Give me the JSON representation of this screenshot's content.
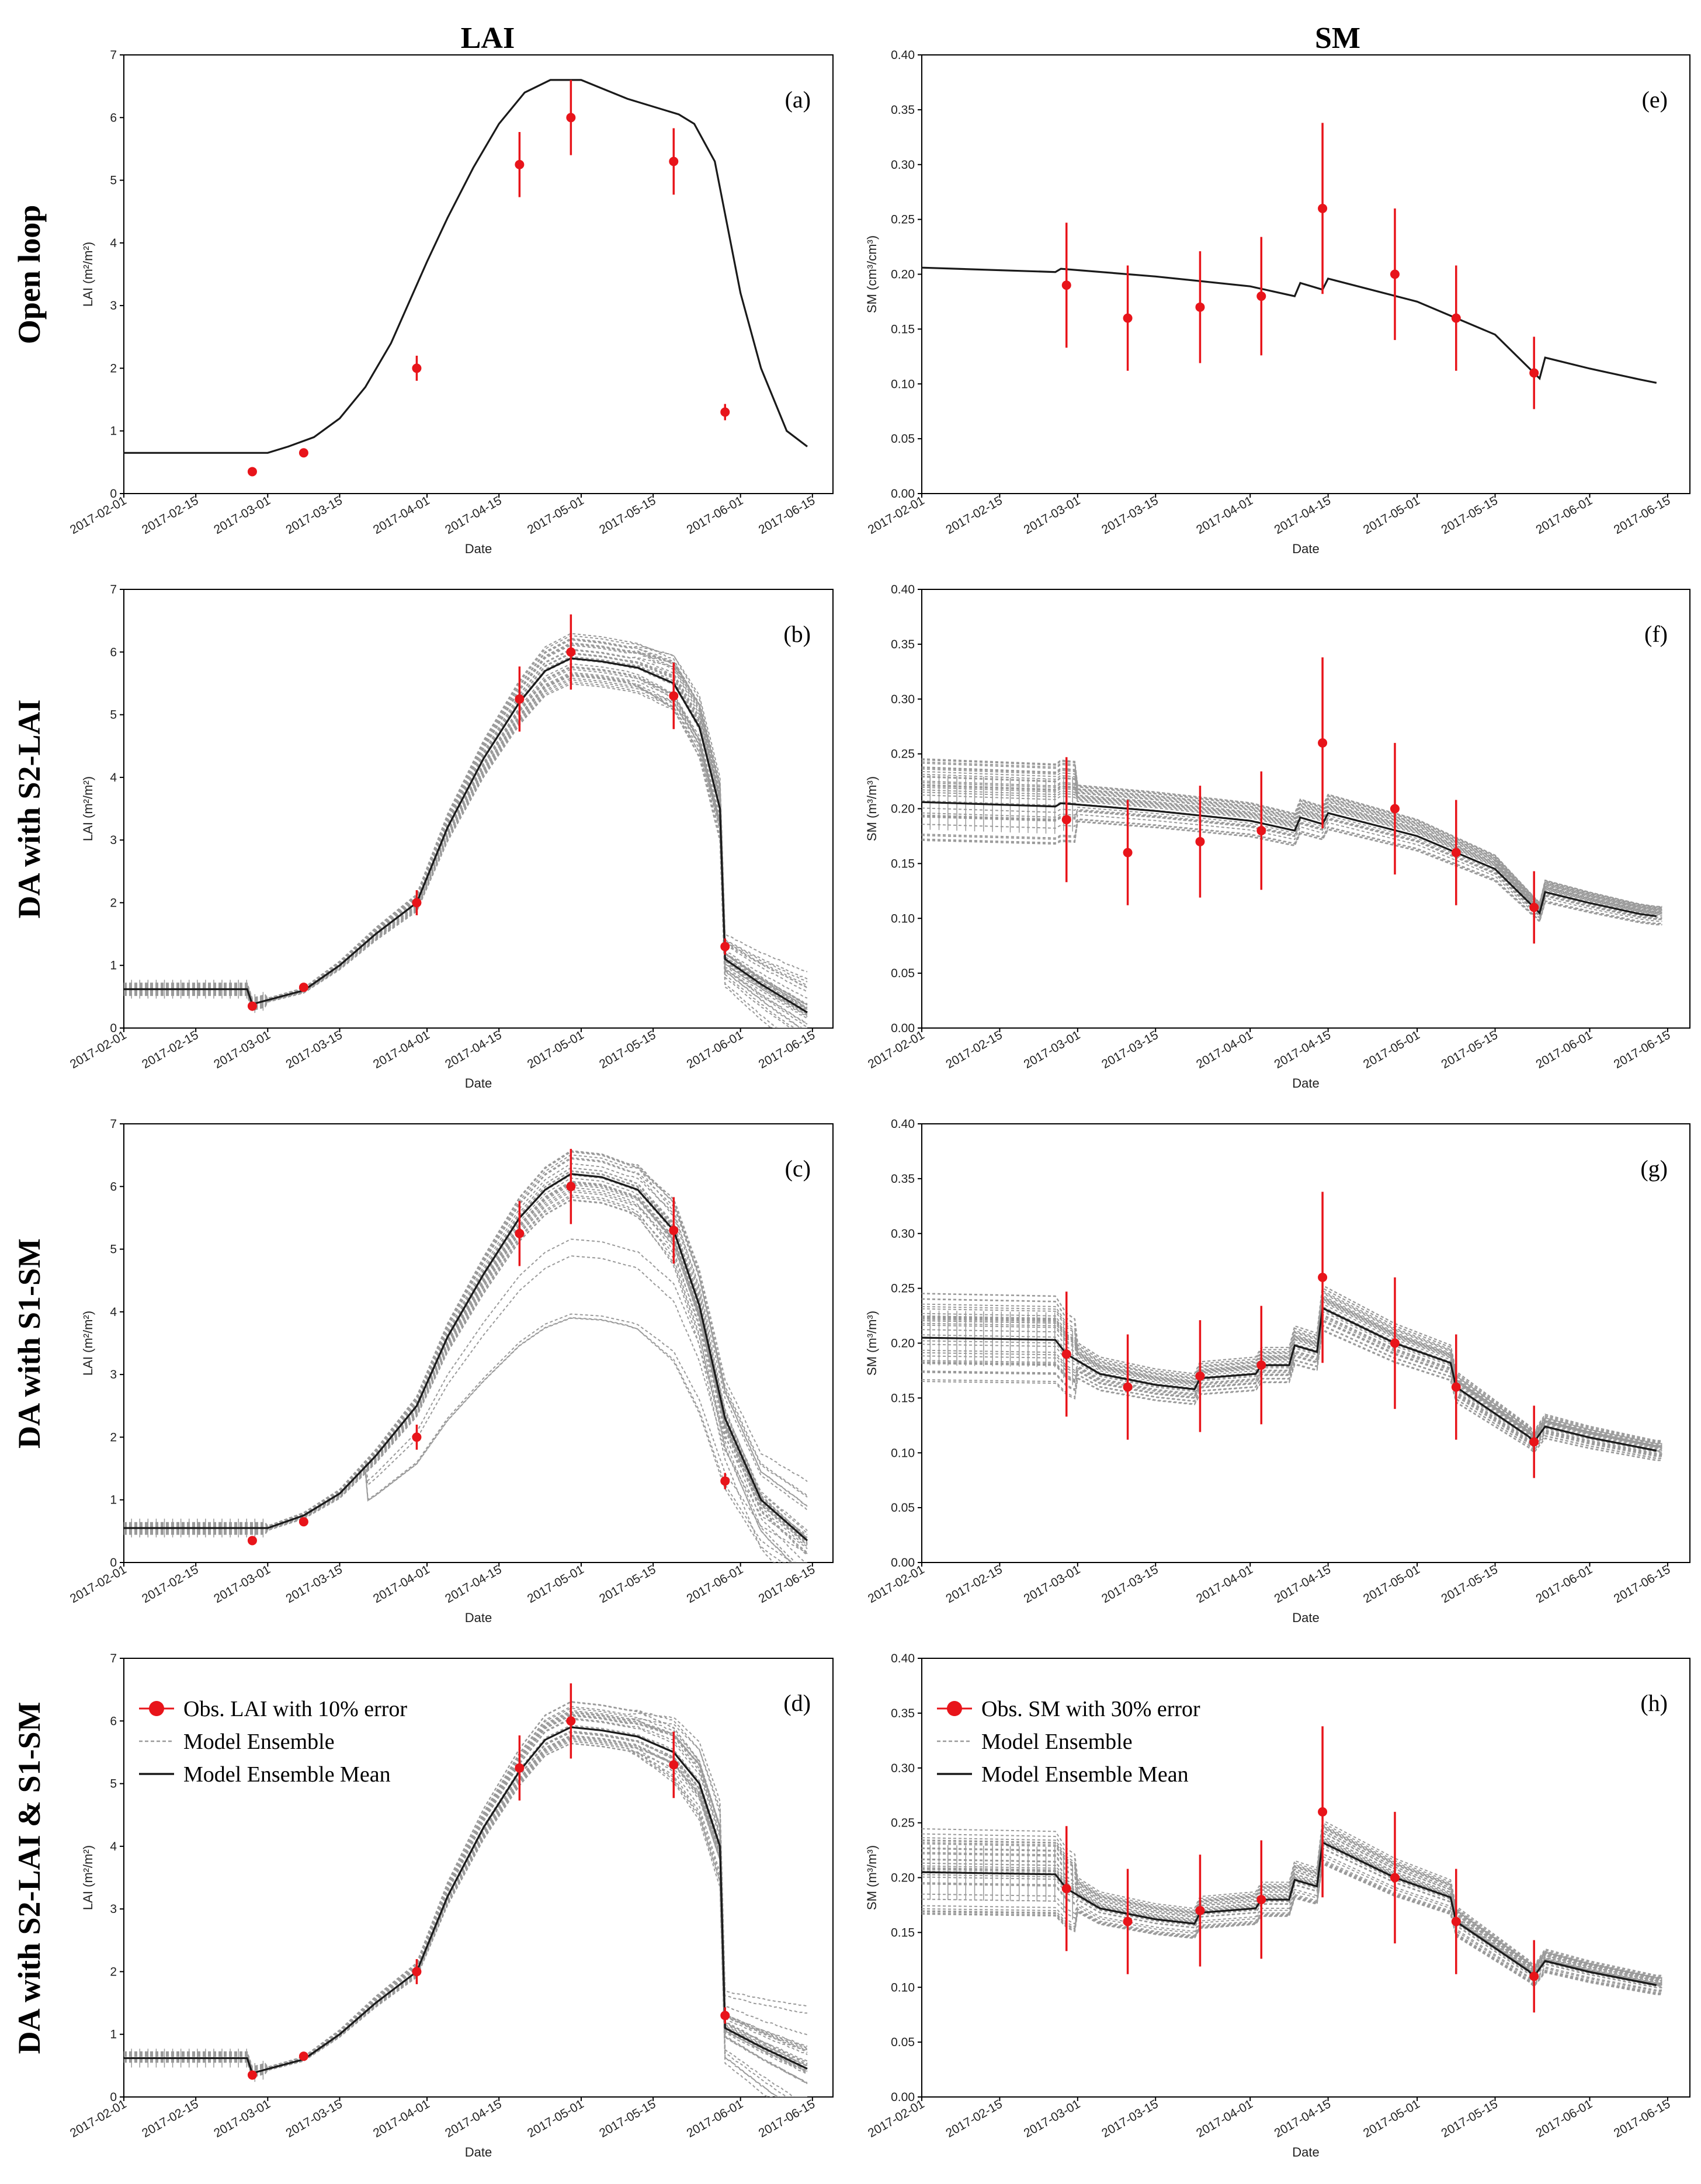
{
  "figure": {
    "column_titles": [
      "LAI",
      "SM"
    ],
    "row_titles": [
      "Open loop",
      "DA with S2-LAI",
      "DA with S1-SM",
      "DA with S2-LAI & S1-SM"
    ]
  },
  "colors": {
    "observation": "#e8141a",
    "ensemble": "#9a9a9a",
    "mean": "#1a1a1a",
    "axis": "#000000"
  },
  "chart_data": [
    {
      "id": "a",
      "letter": "(a)",
      "type": "line",
      "variable": "LAI",
      "row": 0,
      "title": "",
      "xlabel": "Date",
      "ylabel": "LAI (m²/m²)",
      "ylim": [
        0,
        7
      ],
      "yticks": [
        "0",
        "1",
        "2",
        "3",
        "4",
        "5",
        "6",
        "7"
      ],
      "xticks": [
        "2017-02-01",
        "2017-02-15",
        "2017-03-01",
        "2017-03-15",
        "2017-04-01",
        "2017-04-15",
        "2017-05-01",
        "2017-05-15",
        "2017-06-01",
        "2017-06-15"
      ],
      "ensemble": false,
      "legend": null,
      "observations": [
        {
          "date": "2017-02-26",
          "value": 0.35,
          "error": 0.04
        },
        {
          "date": "2017-03-08",
          "value": 0.65,
          "error": 0.07
        },
        {
          "date": "2017-03-30",
          "value": 2.0,
          "error": 0.2
        },
        {
          "date": "2017-04-19",
          "value": 5.25,
          "error": 0.52
        },
        {
          "date": "2017-04-29",
          "value": 6.0,
          "error": 0.6
        },
        {
          "date": "2017-05-19",
          "value": 5.3,
          "error": 0.53
        },
        {
          "date": "2017-05-29",
          "value": 1.3,
          "error": 0.13
        }
      ],
      "mean_series": {
        "name": "Open loop",
        "dates": [
          "2017-02-01",
          "2017-03-01",
          "2017-03-05",
          "2017-03-10",
          "2017-03-15",
          "2017-03-20",
          "2017-03-25",
          "2017-04-01",
          "2017-04-05",
          "2017-04-10",
          "2017-04-15",
          "2017-04-20",
          "2017-04-25",
          "2017-05-01",
          "2017-05-10",
          "2017-05-20",
          "2017-05-23",
          "2017-05-27",
          "2017-06-01",
          "2017-06-05",
          "2017-06-10",
          "2017-06-14"
        ],
        "values": [
          0.65,
          0.65,
          0.75,
          0.9,
          1.2,
          1.7,
          2.4,
          3.7,
          4.4,
          5.2,
          5.9,
          6.4,
          6.6,
          6.6,
          6.3,
          6.05,
          5.9,
          5.3,
          3.2,
          2.0,
          1.0,
          0.75
        ]
      }
    },
    {
      "id": "b",
      "letter": "(b)",
      "type": "line",
      "variable": "LAI",
      "row": 1,
      "title": "",
      "xlabel": "Date",
      "ylabel": "LAI (m²/m²)",
      "ylim": [
        0,
        7
      ],
      "yticks": [
        "0",
        "1",
        "2",
        "3",
        "4",
        "5",
        "6",
        "7"
      ],
      "xticks": [
        "2017-02-01",
        "2017-02-15",
        "2017-03-01",
        "2017-03-15",
        "2017-04-01",
        "2017-04-15",
        "2017-05-01",
        "2017-05-15",
        "2017-06-01",
        "2017-06-15"
      ],
      "ensemble": true,
      "legend": null,
      "observations": [
        {
          "date": "2017-02-26",
          "value": 0.35,
          "error": 0.04
        },
        {
          "date": "2017-03-08",
          "value": 0.65,
          "error": 0.07
        },
        {
          "date": "2017-03-30",
          "value": 2.0,
          "error": 0.2
        },
        {
          "date": "2017-04-19",
          "value": 5.25,
          "error": 0.52
        },
        {
          "date": "2017-04-29",
          "value": 6.0,
          "error": 0.6
        },
        {
          "date": "2017-05-19",
          "value": 5.3,
          "error": 0.53
        },
        {
          "date": "2017-05-29",
          "value": 1.3,
          "error": 0.13
        }
      ],
      "mean_series": {
        "name": "Model Ensemble Mean",
        "dates": [
          "2017-02-01",
          "2017-02-25",
          "2017-02-26",
          "2017-03-08",
          "2017-03-15",
          "2017-03-22",
          "2017-03-30",
          "2017-04-05",
          "2017-04-12",
          "2017-04-19",
          "2017-04-24",
          "2017-04-29",
          "2017-05-05",
          "2017-05-12",
          "2017-05-19",
          "2017-05-24",
          "2017-05-28",
          "2017-05-29",
          "2017-06-05",
          "2017-06-14"
        ],
        "values": [
          0.62,
          0.62,
          0.38,
          0.6,
          1.0,
          1.5,
          2.0,
          3.2,
          4.3,
          5.2,
          5.7,
          5.9,
          5.85,
          5.75,
          5.5,
          4.8,
          3.5,
          1.1,
          0.7,
          0.25
        ]
      }
    },
    {
      "id": "c",
      "letter": "(c)",
      "type": "line",
      "variable": "LAI",
      "row": 2,
      "title": "",
      "xlabel": "Date",
      "ylabel": "LAI (m²/m²)",
      "ylim": [
        0,
        7
      ],
      "yticks": [
        "0",
        "1",
        "2",
        "3",
        "4",
        "5",
        "6",
        "7"
      ],
      "xticks": [
        "2017-02-01",
        "2017-02-15",
        "2017-03-01",
        "2017-03-15",
        "2017-04-01",
        "2017-04-15",
        "2017-05-01",
        "2017-05-15",
        "2017-06-01",
        "2017-06-15"
      ],
      "ensemble": true,
      "legend": null,
      "observations": [
        {
          "date": "2017-02-26",
          "value": 0.35,
          "error": 0.04
        },
        {
          "date": "2017-03-08",
          "value": 0.65,
          "error": 0.07
        },
        {
          "date": "2017-03-30",
          "value": 2.0,
          "error": 0.2
        },
        {
          "date": "2017-04-19",
          "value": 5.25,
          "error": 0.52
        },
        {
          "date": "2017-04-29",
          "value": 6.0,
          "error": 0.6
        },
        {
          "date": "2017-05-19",
          "value": 5.3,
          "error": 0.53
        },
        {
          "date": "2017-05-29",
          "value": 1.3,
          "error": 0.13
        }
      ],
      "mean_series": {
        "name": "Model Ensemble Mean",
        "dates": [
          "2017-02-01",
          "2017-03-01",
          "2017-03-08",
          "2017-03-15",
          "2017-03-22",
          "2017-03-30",
          "2017-04-05",
          "2017-04-12",
          "2017-04-19",
          "2017-04-24",
          "2017-04-29",
          "2017-05-05",
          "2017-05-12",
          "2017-05-19",
          "2017-05-24",
          "2017-05-29",
          "2017-06-05",
          "2017-06-14"
        ],
        "values": [
          0.55,
          0.55,
          0.75,
          1.1,
          1.7,
          2.5,
          3.6,
          4.6,
          5.5,
          5.95,
          6.2,
          6.15,
          5.95,
          5.3,
          4.1,
          2.3,
          1.0,
          0.35
        ]
      }
    },
    {
      "id": "d",
      "letter": "(d)",
      "type": "line",
      "variable": "LAI",
      "row": 3,
      "title": "",
      "xlabel": "Date",
      "ylabel": "LAI (m²/m²)",
      "ylim": [
        0,
        7
      ],
      "yticks": [
        "0",
        "1",
        "2",
        "3",
        "4",
        "5",
        "6",
        "7"
      ],
      "xticks": [
        "2017-02-01",
        "2017-02-15",
        "2017-03-01",
        "2017-03-15",
        "2017-04-01",
        "2017-04-15",
        "2017-05-01",
        "2017-05-15",
        "2017-06-01",
        "2017-06-15"
      ],
      "ensemble": true,
      "legend": {
        "placement": "top-left",
        "entries": [
          "Obs. LAI with 10% error",
          "Model Ensemble",
          "Model Ensemble Mean"
        ]
      },
      "observations": [
        {
          "date": "2017-02-26",
          "value": 0.35,
          "error": 0.04
        },
        {
          "date": "2017-03-08",
          "value": 0.65,
          "error": 0.07
        },
        {
          "date": "2017-03-30",
          "value": 2.0,
          "error": 0.2
        },
        {
          "date": "2017-04-19",
          "value": 5.25,
          "error": 0.52
        },
        {
          "date": "2017-04-29",
          "value": 6.0,
          "error": 0.6
        },
        {
          "date": "2017-05-19",
          "value": 5.3,
          "error": 0.53
        },
        {
          "date": "2017-05-29",
          "value": 1.3,
          "error": 0.13
        }
      ],
      "mean_series": {
        "name": "Model Ensemble Mean",
        "dates": [
          "2017-02-01",
          "2017-02-25",
          "2017-02-26",
          "2017-03-08",
          "2017-03-15",
          "2017-03-22",
          "2017-03-30",
          "2017-04-05",
          "2017-04-12",
          "2017-04-19",
          "2017-04-24",
          "2017-04-29",
          "2017-05-05",
          "2017-05-12",
          "2017-05-19",
          "2017-05-24",
          "2017-05-28",
          "2017-05-29",
          "2017-06-05",
          "2017-06-14"
        ],
        "values": [
          0.62,
          0.62,
          0.38,
          0.6,
          1.0,
          1.5,
          2.0,
          3.2,
          4.3,
          5.2,
          5.7,
          5.9,
          5.85,
          5.75,
          5.5,
          5.0,
          4.0,
          1.1,
          0.8,
          0.45
        ]
      }
    },
    {
      "id": "e",
      "letter": "(e)",
      "type": "line",
      "variable": "SM",
      "row": 0,
      "title": "",
      "xlabel": "Date",
      "ylabel": "SM (cm³/cm³)",
      "ylim": [
        0,
        0.4
      ],
      "yticks": [
        "0.00",
        "0.05",
        "0.10",
        "0.15",
        "0.20",
        "0.25",
        "0.30",
        "0.35",
        "0.40"
      ],
      "xticks": [
        "2017-02-01",
        "2017-02-15",
        "2017-03-01",
        "2017-03-15",
        "2017-04-01",
        "2017-04-15",
        "2017-05-01",
        "2017-05-15",
        "2017-06-01",
        "2017-06-15"
      ],
      "ensemble": false,
      "legend": null,
      "observations": [
        {
          "date": "2017-02-27",
          "value": 0.19,
          "error": 0.057
        },
        {
          "date": "2017-03-10",
          "value": 0.16,
          "error": 0.048
        },
        {
          "date": "2017-03-23",
          "value": 0.17,
          "error": 0.051
        },
        {
          "date": "2017-04-03",
          "value": 0.18,
          "error": 0.054
        },
        {
          "date": "2017-04-14",
          "value": 0.26,
          "error": 0.078
        },
        {
          "date": "2017-04-27",
          "value": 0.2,
          "error": 0.06
        },
        {
          "date": "2017-05-08",
          "value": 0.16,
          "error": 0.048
        },
        {
          "date": "2017-05-22",
          "value": 0.11,
          "error": 0.033
        }
      ],
      "mean_series": {
        "name": "Open loop",
        "dates": [
          "2017-02-01",
          "2017-02-25",
          "2017-02-26",
          "2017-03-15",
          "2017-04-01",
          "2017-04-09",
          "2017-04-10",
          "2017-04-14",
          "2017-04-15",
          "2017-05-01",
          "2017-05-15",
          "2017-05-23",
          "2017-05-24",
          "2017-06-01",
          "2017-06-10",
          "2017-06-13"
        ],
        "values": [
          0.206,
          0.202,
          0.205,
          0.198,
          0.189,
          0.18,
          0.192,
          0.186,
          0.196,
          0.175,
          0.145,
          0.105,
          0.124,
          0.114,
          0.104,
          0.101
        ]
      }
    },
    {
      "id": "f",
      "letter": "(f)",
      "type": "line",
      "variable": "SM",
      "row": 1,
      "title": "",
      "xlabel": "Date",
      "ylabel": "SM (m³/m³)",
      "ylim": [
        0,
        0.4
      ],
      "yticks": [
        "0.00",
        "0.05",
        "0.10",
        "0.15",
        "0.20",
        "0.25",
        "0.30",
        "0.35",
        "0.40"
      ],
      "xticks": [
        "2017-02-01",
        "2017-02-15",
        "2017-03-01",
        "2017-03-15",
        "2017-04-01",
        "2017-04-15",
        "2017-05-01",
        "2017-05-15",
        "2017-06-01",
        "2017-06-15"
      ],
      "ensemble": true,
      "legend": null,
      "observations": [
        {
          "date": "2017-02-27",
          "value": 0.19,
          "error": 0.057
        },
        {
          "date": "2017-03-10",
          "value": 0.16,
          "error": 0.048
        },
        {
          "date": "2017-03-23",
          "value": 0.17,
          "error": 0.051
        },
        {
          "date": "2017-04-03",
          "value": 0.18,
          "error": 0.054
        },
        {
          "date": "2017-04-14",
          "value": 0.26,
          "error": 0.078
        },
        {
          "date": "2017-04-27",
          "value": 0.2,
          "error": 0.06
        },
        {
          "date": "2017-05-08",
          "value": 0.16,
          "error": 0.048
        },
        {
          "date": "2017-05-22",
          "value": 0.11,
          "error": 0.033
        }
      ],
      "mean_series": {
        "name": "Model Ensemble Mean",
        "dates": [
          "2017-02-01",
          "2017-02-25",
          "2017-02-26",
          "2017-03-15",
          "2017-04-01",
          "2017-04-09",
          "2017-04-10",
          "2017-04-14",
          "2017-04-15",
          "2017-05-01",
          "2017-05-15",
          "2017-05-23",
          "2017-05-24",
          "2017-06-01",
          "2017-06-10",
          "2017-06-13"
        ],
        "values": [
          0.206,
          0.202,
          0.205,
          0.198,
          0.189,
          0.18,
          0.192,
          0.186,
          0.196,
          0.175,
          0.145,
          0.105,
          0.124,
          0.114,
          0.104,
          0.102
        ]
      }
    },
    {
      "id": "g",
      "letter": "(g)",
      "type": "line",
      "variable": "SM",
      "row": 2,
      "title": "",
      "xlabel": "Date",
      "ylabel": "SM (m³/m³)",
      "ylim": [
        0,
        0.4
      ],
      "yticks": [
        "0.00",
        "0.05",
        "0.10",
        "0.15",
        "0.20",
        "0.25",
        "0.30",
        "0.35",
        "0.40"
      ],
      "xticks": [
        "2017-02-01",
        "2017-02-15",
        "2017-03-01",
        "2017-03-15",
        "2017-04-01",
        "2017-04-15",
        "2017-05-01",
        "2017-05-15",
        "2017-06-01",
        "2017-06-15"
      ],
      "ensemble": true,
      "legend": null,
      "observations": [
        {
          "date": "2017-02-27",
          "value": 0.19,
          "error": 0.057
        },
        {
          "date": "2017-03-10",
          "value": 0.16,
          "error": 0.048
        },
        {
          "date": "2017-03-23",
          "value": 0.17,
          "error": 0.051
        },
        {
          "date": "2017-04-03",
          "value": 0.18,
          "error": 0.054
        },
        {
          "date": "2017-04-14",
          "value": 0.26,
          "error": 0.078
        },
        {
          "date": "2017-04-27",
          "value": 0.2,
          "error": 0.06
        },
        {
          "date": "2017-05-08",
          "value": 0.16,
          "error": 0.048
        },
        {
          "date": "2017-05-22",
          "value": 0.11,
          "error": 0.033
        }
      ],
      "mean_series": {
        "name": "Model Ensemble Mean",
        "dates": [
          "2017-02-01",
          "2017-02-25",
          "2017-02-27",
          "2017-03-05",
          "2017-03-15",
          "2017-03-22",
          "2017-03-23",
          "2017-04-02",
          "2017-04-03",
          "2017-04-08",
          "2017-04-09",
          "2017-04-13",
          "2017-04-14",
          "2017-04-27",
          "2017-05-07",
          "2017-05-08",
          "2017-05-21",
          "2017-05-22",
          "2017-05-24",
          "2017-06-01",
          "2017-06-13"
        ],
        "values": [
          0.205,
          0.203,
          0.19,
          0.172,
          0.162,
          0.158,
          0.168,
          0.172,
          0.18,
          0.18,
          0.198,
          0.192,
          0.232,
          0.2,
          0.182,
          0.16,
          0.115,
          0.11,
          0.124,
          0.114,
          0.102
        ]
      }
    },
    {
      "id": "h",
      "letter": "(h)",
      "type": "line",
      "variable": "SM",
      "row": 3,
      "title": "",
      "xlabel": "Date",
      "ylabel": "SM (m³/m³)",
      "ylim": [
        0,
        0.4
      ],
      "yticks": [
        "0.00",
        "0.05",
        "0.10",
        "0.15",
        "0.20",
        "0.25",
        "0.30",
        "0.35",
        "0.40"
      ],
      "xticks": [
        "2017-02-01",
        "2017-02-15",
        "2017-03-01",
        "2017-03-15",
        "2017-04-01",
        "2017-04-15",
        "2017-05-01",
        "2017-05-15",
        "2017-06-01",
        "2017-06-15"
      ],
      "ensemble": true,
      "legend": {
        "placement": "top-left",
        "entries": [
          "Obs. SM with 30% error",
          "Model Ensemble",
          "Model Ensemble Mean"
        ]
      },
      "observations": [
        {
          "date": "2017-02-27",
          "value": 0.19,
          "error": 0.057
        },
        {
          "date": "2017-03-10",
          "value": 0.16,
          "error": 0.048
        },
        {
          "date": "2017-03-23",
          "value": 0.17,
          "error": 0.051
        },
        {
          "date": "2017-04-03",
          "value": 0.18,
          "error": 0.054
        },
        {
          "date": "2017-04-14",
          "value": 0.26,
          "error": 0.078
        },
        {
          "date": "2017-04-27",
          "value": 0.2,
          "error": 0.06
        },
        {
          "date": "2017-05-08",
          "value": 0.16,
          "error": 0.048
        },
        {
          "date": "2017-05-22",
          "value": 0.11,
          "error": 0.033
        }
      ],
      "mean_series": {
        "name": "Model Ensemble Mean",
        "dates": [
          "2017-02-01",
          "2017-02-25",
          "2017-02-27",
          "2017-03-05",
          "2017-03-15",
          "2017-03-22",
          "2017-03-23",
          "2017-04-02",
          "2017-04-03",
          "2017-04-08",
          "2017-04-09",
          "2017-04-13",
          "2017-04-14",
          "2017-04-27",
          "2017-05-07",
          "2017-05-08",
          "2017-05-21",
          "2017-05-22",
          "2017-05-24",
          "2017-06-01",
          "2017-06-13"
        ],
        "values": [
          0.205,
          0.203,
          0.19,
          0.172,
          0.162,
          0.158,
          0.168,
          0.172,
          0.18,
          0.18,
          0.198,
          0.192,
          0.232,
          0.2,
          0.182,
          0.16,
          0.115,
          0.11,
          0.124,
          0.114,
          0.102
        ]
      }
    }
  ]
}
